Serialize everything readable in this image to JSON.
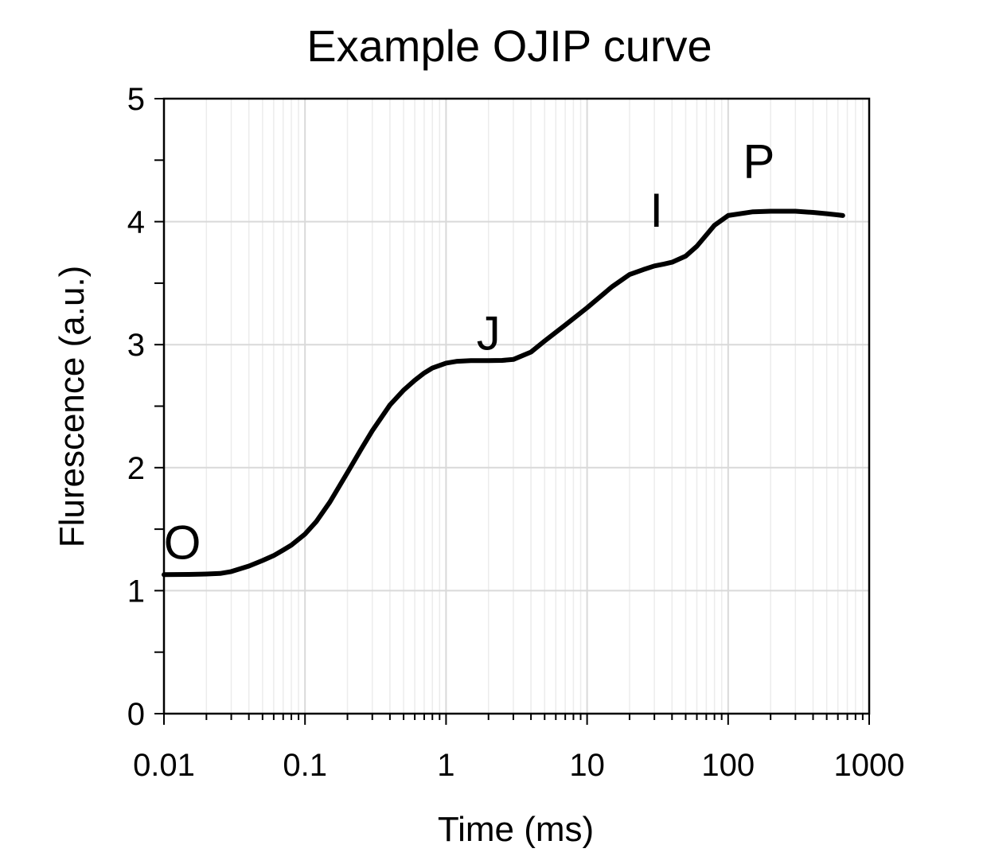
{
  "chart_data": {
    "type": "line",
    "title": "Example OJIP curve",
    "xlabel": "Time (ms)",
    "ylabel": "Flurescence (a.u.)",
    "xscale": "log",
    "xlim": [
      0.01,
      1000
    ],
    "ylim": [
      0,
      5
    ],
    "x_ticks": [
      "0.01",
      "0.1",
      "1",
      "10",
      "100",
      "1000"
    ],
    "y_ticks": [
      "0",
      "1",
      "2",
      "3",
      "4",
      "5"
    ],
    "grid": true,
    "legend": "none",
    "line_color": "#000000",
    "grid_color": "#d9d9d9",
    "series": [
      {
        "x": [
          0.01,
          0.015,
          0.02,
          0.025,
          0.03,
          0.04,
          0.05,
          0.06,
          0.07,
          0.08,
          0.1,
          0.12,
          0.15,
          0.2,
          0.25,
          0.3,
          0.4,
          0.5,
          0.6,
          0.7,
          0.8,
          1.0,
          1.2,
          1.5,
          2.0,
          2.5,
          3.0,
          4.0,
          5.0,
          7.0,
          10,
          15,
          20,
          25,
          30,
          35,
          40,
          50,
          60,
          80,
          100,
          150,
          200,
          300,
          400,
          500,
          600,
          650
        ],
        "y": [
          1.13,
          1.132,
          1.135,
          1.14,
          1.155,
          1.2,
          1.245,
          1.285,
          1.33,
          1.37,
          1.46,
          1.56,
          1.72,
          1.96,
          2.15,
          2.3,
          2.51,
          2.63,
          2.71,
          2.77,
          2.81,
          2.85,
          2.865,
          2.87,
          2.87,
          2.872,
          2.88,
          2.94,
          3.03,
          3.16,
          3.3,
          3.47,
          3.57,
          3.61,
          3.64,
          3.655,
          3.67,
          3.72,
          3.8,
          3.97,
          4.05,
          4.08,
          4.085,
          4.085,
          4.075,
          4.065,
          4.055,
          4.05
        ]
      }
    ],
    "annotations": [
      {
        "text": "O",
        "x": 0.0135,
        "y": 1.4
      },
      {
        "text": "J",
        "x": 2.0,
        "y": 3.1
      },
      {
        "text": "I",
        "x": 31,
        "y": 4.1
      },
      {
        "text": "P",
        "x": 165,
        "y": 4.5
      }
    ]
  }
}
